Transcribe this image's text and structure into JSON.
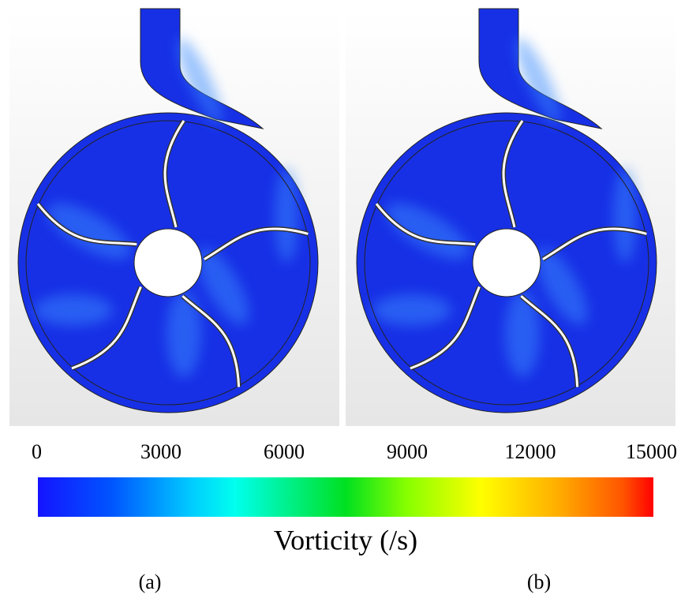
{
  "chart_data": {
    "type": "colorbar",
    "xlim": [
      0,
      15000
    ],
    "xticks": [
      0,
      3000,
      6000,
      9000,
      12000,
      15000
    ],
    "xlabel": "Vorticity (/s)",
    "panels": [
      "(a)",
      "(b)"
    ]
  }
}
